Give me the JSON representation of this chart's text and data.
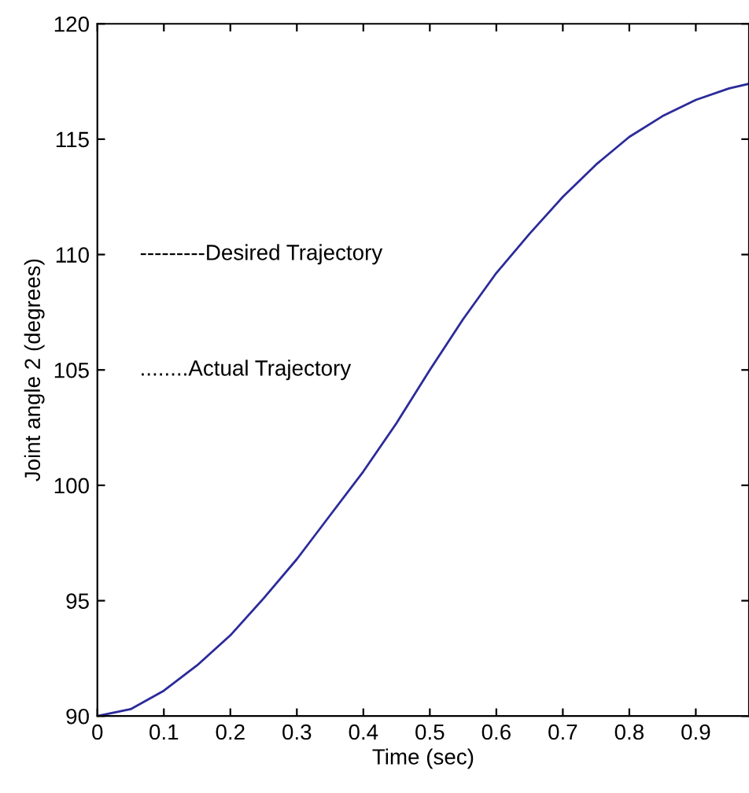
{
  "chart_data": {
    "type": "line",
    "xlabel": "Time (sec)",
    "ylabel": "Joint angle 2 (degrees)",
    "x": [
      0,
      0.05,
      0.1,
      0.15,
      0.2,
      0.25,
      0.3,
      0.35,
      0.4,
      0.45,
      0.5,
      0.55,
      0.6,
      0.65,
      0.7,
      0.75,
      0.8,
      0.85,
      0.9,
      0.95,
      0.98
    ],
    "series": [
      {
        "color": "#2b2b9b",
        "values": [
          90,
          90.3,
          91.1,
          92.2,
          93.5,
          95.1,
          96.8,
          98.7,
          100.6,
          102.7,
          105.0,
          107.2,
          109.2,
          110.9,
          112.5,
          113.9,
          115.1,
          116.0,
          116.7,
          117.2,
          117.4
        ]
      }
    ],
    "annotations": [
      "---------Desired Trajectory",
      "........Actual Trajectory"
    ],
    "xlim": [
      0,
      0.98
    ],
    "xticks": [
      0,
      0.1,
      0.2,
      0.3,
      0.4,
      0.5,
      0.6,
      0.7,
      0.8,
      0.9
    ],
    "ylim": [
      90,
      120
    ],
    "yticks": [
      90,
      95,
      100,
      105,
      110,
      115,
      120
    ],
    "grid": false,
    "legend": false,
    "marker": "none",
    "line_style": "solid"
  }
}
